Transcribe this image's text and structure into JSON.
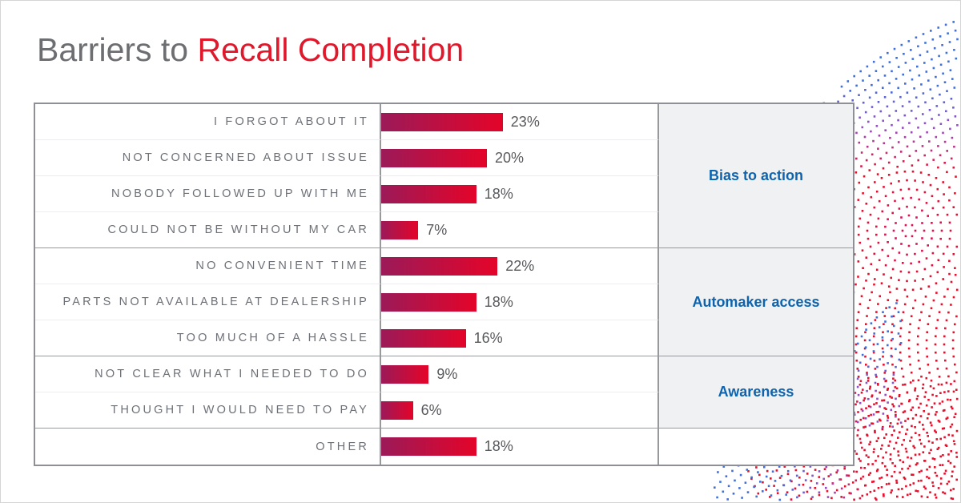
{
  "title": {
    "prefix": "Barriers to ",
    "highlight": "Recall Completion"
  },
  "chart_data": {
    "type": "bar",
    "orientation": "horizontal",
    "title": "Barriers to Recall Completion",
    "value_unit": "%",
    "xlim": [
      0,
      25
    ],
    "grid": false,
    "legend": null,
    "categories": [
      "I FORGOT ABOUT IT",
      "NOT CONCERNED ABOUT ISSUE",
      "NOBODY FOLLOWED UP WITH ME",
      "COULD NOT BE WITHOUT MY CAR",
      "NO CONVENIENT TIME",
      "PARTS NOT AVAILABLE AT DEALERSHIP",
      "TOO MUCH OF A HASSLE",
      "NOT CLEAR WHAT I NEEDED TO DO",
      "THOUGHT I WOULD NEED TO PAY",
      "OTHER"
    ],
    "values": [
      23,
      20,
      18,
      7,
      22,
      18,
      16,
      9,
      6,
      18
    ],
    "rows": [
      {
        "label": "I FORGOT ABOUT IT",
        "value": 23,
        "display": "23%",
        "group": "Bias to action"
      },
      {
        "label": "NOT CONCERNED ABOUT ISSUE",
        "value": 20,
        "display": "20%",
        "group": "Bias to action"
      },
      {
        "label": "NOBODY FOLLOWED UP WITH ME",
        "value": 18,
        "display": "18%",
        "group": "Bias to action"
      },
      {
        "label": "COULD NOT BE WITHOUT MY CAR",
        "value": 7,
        "display": "7%",
        "group": "Bias to action"
      },
      {
        "label": "NO CONVENIENT TIME",
        "value": 22,
        "display": "22%",
        "group": "Automaker access"
      },
      {
        "label": "PARTS NOT AVAILABLE AT DEALERSHIP",
        "value": 18,
        "display": "18%",
        "group": "Automaker access"
      },
      {
        "label": "TOO MUCH OF A HASSLE",
        "value": 16,
        "display": "16%",
        "group": "Automaker access"
      },
      {
        "label": "NOT CLEAR WHAT I NEEDED TO DO",
        "value": 9,
        "display": "9%",
        "group": "Awareness"
      },
      {
        "label": "THOUGHT I WOULD NEED TO PAY",
        "value": 6,
        "display": "6%",
        "group": "Awareness"
      },
      {
        "label": "OTHER",
        "value": 18,
        "display": "18%",
        "group": ""
      }
    ],
    "groups": [
      {
        "label": "Bias to action",
        "row_span": 4
      },
      {
        "label": "Automaker access",
        "row_span": 3
      },
      {
        "label": "Awareness",
        "row_span": 2
      },
      {
        "label": "",
        "row_span": 1
      }
    ]
  },
  "colors": {
    "title_prefix": "#6D6E71",
    "title_highlight": "#DF182C",
    "bar_gradient_start": "#9B1A58",
    "bar_gradient_end": "#E40429",
    "group_label": "#0D63AE",
    "row_label": "#6D7077",
    "value_label": "#58595C",
    "group_cell_background": "#F0F1F2",
    "dot_blue": "#3F6FD9",
    "dot_purple": "#9A4CC5",
    "dot_red": "#E6102C",
    "dot_crimson": "#D41360"
  }
}
